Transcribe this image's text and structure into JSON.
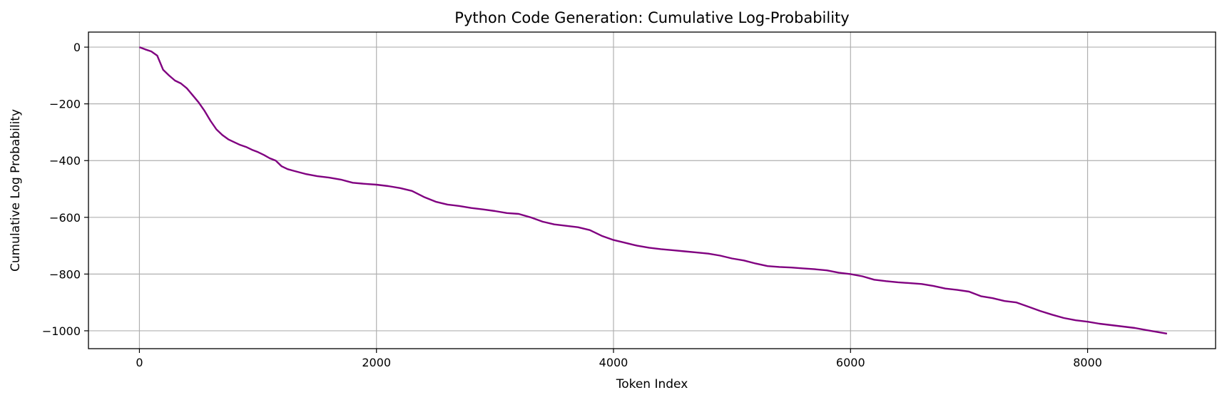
{
  "chart_data": {
    "type": "line",
    "title": "Python Code Generation: Cumulative Log-Probability",
    "xlabel": "Token Index",
    "ylabel": "Cumulative Log Probability",
    "xlim": [
      -430,
      9080
    ],
    "ylim": [
      -1063,
      53
    ],
    "xticks": [
      0,
      2000,
      4000,
      6000,
      8000
    ],
    "xtick_labels": [
      "0",
      "2000",
      "4000",
      "6000",
      "8000"
    ],
    "yticks": [
      0,
      -200,
      -400,
      -600,
      -800,
      -1000
    ],
    "ytick_labels": [
      "0",
      "−200",
      "−400",
      "−600",
      "−800",
      "−1000"
    ],
    "grid": true,
    "line_color": "#800080",
    "series": [
      {
        "x": [
          0,
          50,
          100,
          150,
          200,
          250,
          300,
          350,
          400,
          450,
          500,
          550,
          600,
          650,
          700,
          750,
          800,
          850,
          900,
          950,
          1000,
          1050,
          1100,
          1150,
          1200,
          1250,
          1300,
          1400,
          1500,
          1600,
          1700,
          1800,
          1900,
          2000,
          2100,
          2200,
          2300,
          2400,
          2500,
          2600,
          2700,
          2800,
          2900,
          3000,
          3100,
          3200,
          3300,
          3400,
          3500,
          3600,
          3700,
          3800,
          3900,
          4000,
          4100,
          4200,
          4300,
          4400,
          4500,
          4600,
          4700,
          4800,
          4900,
          5000,
          5100,
          5200,
          5300,
          5400,
          5500,
          5600,
          5700,
          5800,
          5900,
          6000,
          6100,
          6200,
          6300,
          6400,
          6500,
          6600,
          6700,
          6800,
          6900,
          7000,
          7100,
          7200,
          7300,
          7400,
          7500,
          7600,
          7700,
          7800,
          7900,
          8000,
          8100,
          8200,
          8300,
          8400,
          8500,
          8600,
          8670
        ],
        "y": [
          0,
          -8,
          -15,
          -30,
          -80,
          -100,
          -118,
          -128,
          -145,
          -170,
          -195,
          -225,
          -260,
          -290,
          -310,
          -325,
          -335,
          -345,
          -352,
          -362,
          -370,
          -380,
          -392,
          -400,
          -420,
          -430,
          -436,
          -447,
          -455,
          -460,
          -467,
          -478,
          -482,
          -485,
          -490,
          -497,
          -507,
          -528,
          -545,
          -555,
          -560,
          -567,
          -572,
          -578,
          -585,
          -588,
          -600,
          -615,
          -625,
          -630,
          -635,
          -645,
          -665,
          -680,
          -690,
          -700,
          -707,
          -712,
          -716,
          -720,
          -724,
          -728,
          -735,
          -745,
          -752,
          -763,
          -772,
          -775,
          -777,
          -780,
          -783,
          -787,
          -795,
          -800,
          -808,
          -820,
          -825,
          -829,
          -832,
          -835,
          -842,
          -851,
          -856,
          -862,
          -878,
          -885,
          -895,
          -900,
          -915,
          -930,
          -943,
          -955,
          -963,
          -968,
          -975,
          -980,
          -985,
          -990,
          -998,
          -1005,
          -1010
        ]
      }
    ]
  }
}
